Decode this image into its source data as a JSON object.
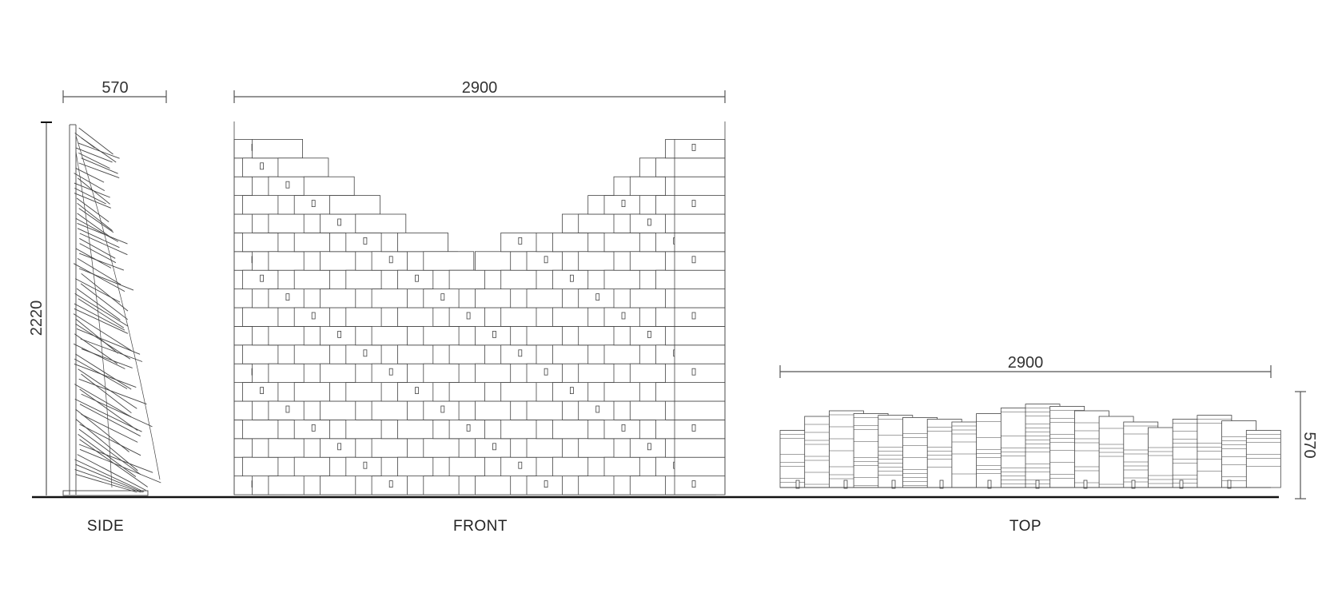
{
  "views": {
    "side": {
      "label": "SIDE",
      "width_dim": "570",
      "height_dim": "2220"
    },
    "front": {
      "label": "FRONT",
      "width_dim": "2900"
    },
    "top": {
      "label": "TOP",
      "width_dim": "2900",
      "depth_dim": "570"
    }
  },
  "colors": {
    "line": "#444444",
    "ground": "#111111",
    "dimension": "#555555",
    "background": "#ffffff"
  }
}
